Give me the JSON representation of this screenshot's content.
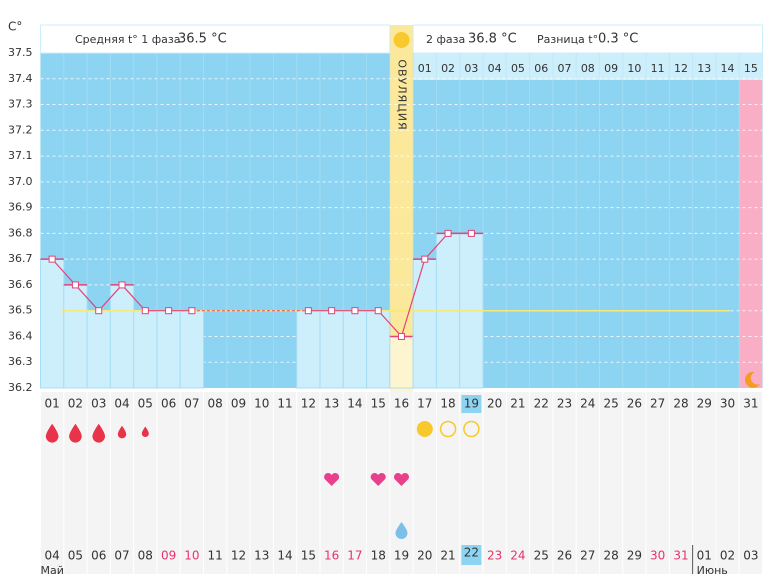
{
  "chart_data": {
    "type": "line",
    "y_unit": "C°",
    "phase1_label": "Средняя t° 1 фаза",
    "phase1_average": {
      "value": 36.5,
      "label": "36.5 °C"
    },
    "phase2_label": "2 фаза",
    "phase2_average": "36.8 °C",
    "difference_label": "Разница t°",
    "difference": "0.3 °C",
    "ovulation_label": "ОВУЛЯЦИЯ",
    "categories": [
      "01",
      "02",
      "03",
      "04",
      "05",
      "06",
      "07",
      "08",
      "09",
      "10",
      "11",
      "12",
      "13",
      "14",
      "15",
      "16",
      "17",
      "18",
      "19",
      "20",
      "21",
      "22",
      "23",
      "24",
      "25",
      "26",
      "27",
      "28",
      "29",
      "30",
      "31"
    ],
    "values": [
      36.7,
      36.6,
      36.5,
      36.6,
      36.5,
      36.5,
      36.5,
      null,
      null,
      null,
      null,
      36.5,
      36.5,
      36.5,
      36.5,
      36.4,
      36.7,
      36.8,
      36.8,
      null,
      null,
      null,
      null,
      null,
      null,
      null,
      null,
      null,
      null,
      null,
      null
    ],
    "color": "#e0457b",
    "phase2_days": [
      "01",
      "02",
      "03",
      "04",
      "05",
      "06",
      "07",
      "08",
      "09",
      "10",
      "11",
      "12",
      "13",
      "14",
      "15"
    ],
    "calendar_dates": [
      "04",
      "05",
      "06",
      "07",
      "08",
      "09",
      "10",
      "11",
      "12",
      "13",
      "14",
      "15",
      "16",
      "17",
      "18",
      "19",
      "20",
      "21",
      "22",
      "23",
      "24",
      "25",
      "26",
      "27",
      "28",
      "29",
      "30",
      "31",
      "01",
      "02",
      "03"
    ],
    "months": [
      "Май",
      "Июнь"
    ],
    "ylim": [
      36.2,
      37.5
    ],
    "yticks": [
      37.5,
      37.4,
      37.3,
      37.2,
      37.1,
      {
        "value": 37,
        "label": "37.0"
      },
      36.9,
      36.8,
      36.7,
      36.6,
      36.5,
      36.4,
      36.3,
      36.2
    ],
    "grid": true
  }
}
